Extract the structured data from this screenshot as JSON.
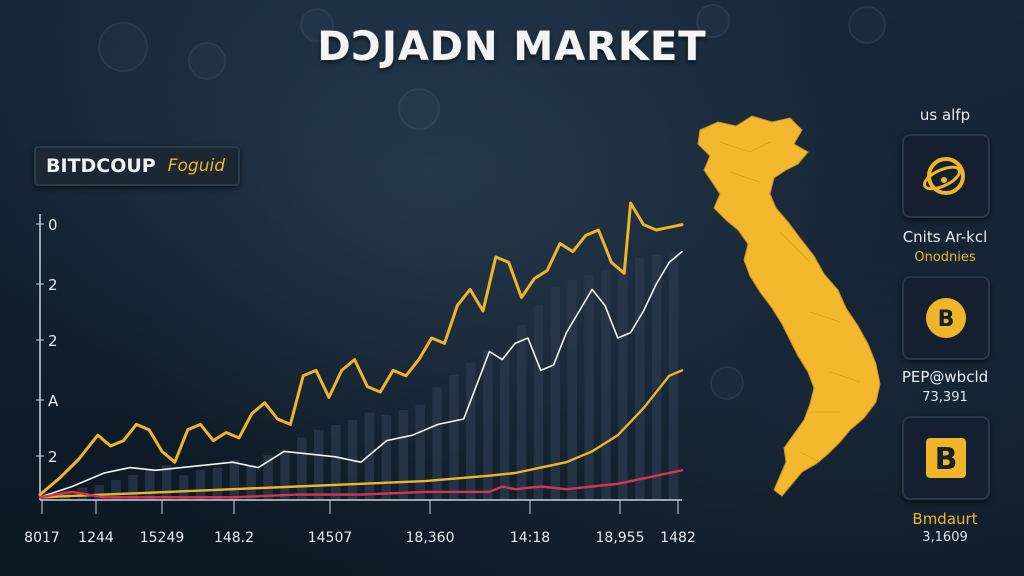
{
  "title": "DƆJADN MARKET",
  "badge": {
    "main": "BITDCOUP",
    "sub": "Foguid"
  },
  "colors": {
    "accent": "#f0b429",
    "line_white": "#f2f4f6",
    "line_red": "#d8344f",
    "bars": "#2a3a4c",
    "map": "#f3b82e"
  },
  "right_panel": {
    "top_label": "us alfp",
    "cards": [
      {
        "icon": "ring-coin-icon",
        "label": "Cnits Ar-kcl",
        "sub": "Onodnies",
        "sub_color": "#f0b429"
      },
      {
        "icon": "b-coin-icon",
        "label": "PEP@wbcld",
        "sub": "73,391",
        "sub_color": "#e8edf2"
      },
      {
        "icon": "b-square-icon",
        "label": "Bmdaurt",
        "sub": "3,1609",
        "sub_color": "#e8edf2"
      }
    ]
  },
  "chart_data": {
    "type": "line",
    "y_tick_labels": [
      "0",
      "2",
      "2",
      "A",
      "2"
    ],
    "x_tick_labels": [
      "8017",
      "1244",
      "15249",
      "148.2",
      "14507",
      "18,360",
      "14:18",
      "18,955",
      "1482"
    ],
    "xlim": [
      0,
      100
    ],
    "ylim": [
      0,
      100
    ],
    "series": [
      {
        "color": "#f0b429",
        "x": [
          0,
          3,
          6,
          9,
          11,
          13,
          15,
          17,
          19,
          21,
          23,
          25,
          27,
          29,
          31,
          33,
          35,
          37,
          39,
          41,
          43,
          45,
          47,
          49,
          51,
          53,
          55,
          57,
          59,
          61,
          63,
          65,
          67,
          69,
          71,
          73,
          75,
          77,
          79,
          81,
          83,
          85,
          87,
          89,
          91,
          92,
          94,
          96,
          98,
          100
        ],
        "y": [
          2,
          8,
          15,
          24,
          20,
          22,
          28,
          26,
          18,
          14,
          26,
          28,
          22,
          25,
          23,
          32,
          36,
          30,
          28,
          46,
          48,
          38,
          48,
          52,
          42,
          40,
          48,
          46,
          52,
          60,
          58,
          72,
          78,
          70,
          90,
          88,
          75,
          82,
          85,
          95,
          92,
          98,
          100,
          88,
          84,
          110,
          102,
          100,
          101,
          102
        ],
        "value_unit": "relative"
      },
      {
        "color": "#f2f4f6",
        "x": [
          0,
          5,
          10,
          14,
          18,
          22,
          26,
          30,
          34,
          38,
          42,
          46,
          50,
          54,
          58,
          62,
          66,
          70,
          72,
          74,
          76,
          78,
          80,
          82,
          84,
          86,
          88,
          90,
          92,
          94,
          96,
          98,
          100
        ],
        "y": [
          1,
          5,
          10,
          12,
          11,
          12,
          13,
          14,
          12,
          18,
          17,
          16,
          14,
          22,
          24,
          28,
          30,
          55,
          52,
          58,
          60,
          48,
          50,
          62,
          70,
          78,
          72,
          60,
          62,
          70,
          80,
          88,
          92
        ],
        "value_unit": "relative"
      },
      {
        "color": "#f0b429",
        "x": [
          0,
          10,
          20,
          30,
          40,
          50,
          60,
          70,
          74,
          78,
          82,
          86,
          90,
          94,
          98,
          100
        ],
        "y": [
          1,
          2,
          3,
          4,
          5,
          6,
          7,
          9,
          10,
          12,
          14,
          18,
          24,
          34,
          46,
          48
        ],
        "value_unit": "relative"
      },
      {
        "color": "#d8344f",
        "x": [
          0,
          5,
          10,
          20,
          30,
          40,
          50,
          60,
          70,
          72,
          74,
          78,
          82,
          86,
          90,
          94,
          98,
          100
        ],
        "y": [
          1,
          3,
          1,
          1,
          1,
          2,
          2,
          3,
          3,
          5,
          4,
          5,
          4,
          5,
          6,
          8,
          10,
          11
        ],
        "value_unit": "relative"
      }
    ],
    "bars": [
      3,
      4,
      5,
      6,
      8,
      10,
      12,
      14,
      10,
      12,
      13,
      16,
      14,
      18,
      20,
      25,
      28,
      30,
      32,
      35,
      34,
      36,
      38,
      45,
      50,
      55,
      60,
      58,
      70,
      78,
      85,
      88,
      90,
      92,
      95,
      97,
      98,
      99
    ],
    "grid": false
  }
}
